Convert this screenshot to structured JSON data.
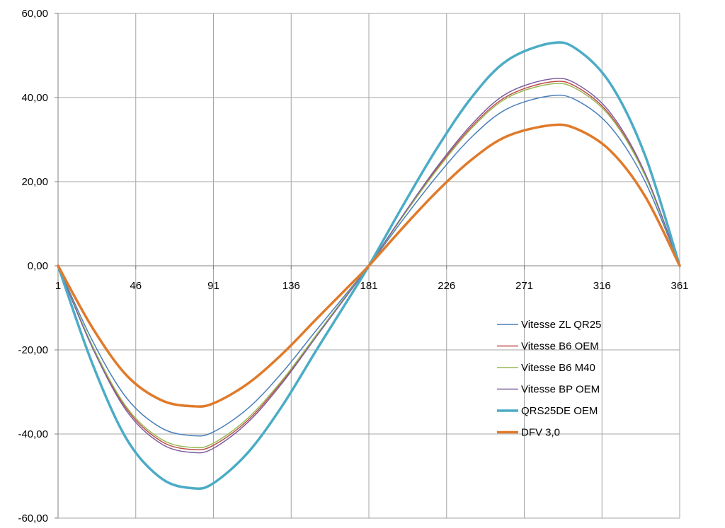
{
  "chart_data": {
    "type": "line",
    "title": "",
    "xlabel": "",
    "ylabel": "",
    "ylim": [
      -60,
      60
    ],
    "y_ticks": [
      60,
      40,
      20,
      0,
      -20,
      -40,
      -60
    ],
    "y_tick_labels": [
      "60,00",
      "40,00",
      "20,00",
      "0,00",
      "-20,00",
      "-40,00",
      "-60,00"
    ],
    "x_range": [
      1,
      361
    ],
    "x_ticks": [
      1,
      46,
      91,
      136,
      181,
      226,
      271,
      316,
      361
    ],
    "x_tick_labels": [
      "1",
      "46",
      "91",
      "136",
      "181",
      "226",
      "271",
      "316",
      "361"
    ],
    "grid": true,
    "legend_position": "right",
    "x": [
      1,
      21,
      41,
      61,
      79,
      91,
      111,
      131,
      151,
      171,
      181,
      201,
      221,
      241,
      261,
      286,
      301,
      321,
      341,
      361
    ],
    "series": [
      {
        "name": "Vitesse ZL QR25",
        "color": "#4a7ebb",
        "width": 1.5,
        "values": [
          0,
          -17.9,
          -31.6,
          -38.6,
          -40.4,
          -39.5,
          -33.9,
          -25.3,
          -15.1,
          -5.1,
          0,
          11.1,
          21.6,
          30.8,
          37.3,
          40.4,
          39.4,
          33.0,
          20.0,
          0
        ]
      },
      {
        "name": "Vitesse B6 OEM",
        "color": "#be4b48",
        "width": 1.5,
        "values": [
          0,
          -19.3,
          -34.2,
          -41.8,
          -43.7,
          -42.7,
          -36.7,
          -27.4,
          -16.4,
          -5.5,
          0,
          12.0,
          23.4,
          33.3,
          40.3,
          43.7,
          42.6,
          35.7,
          21.6,
          0
        ]
      },
      {
        "name": "Vitesse B6 M40",
        "color": "#98b954",
        "width": 1.5,
        "values": [
          0,
          -19.1,
          -33.8,
          -41.3,
          -43.2,
          -42.2,
          -36.2,
          -27.1,
          -16.2,
          -5.4,
          0,
          11.9,
          23.1,
          32.9,
          39.9,
          43.2,
          42.1,
          35.3,
          21.4,
          0
        ]
      },
      {
        "name": "Vitesse BP OEM",
        "color": "#7d60a0",
        "width": 1.5,
        "values": [
          0,
          -19.6,
          -34.7,
          -42.4,
          -44.4,
          -43.4,
          -37.2,
          -27.8,
          -16.6,
          -5.6,
          0,
          12.2,
          23.8,
          33.8,
          41.0,
          44.4,
          43.3,
          36.3,
          22.0,
          0
        ]
      },
      {
        "name": "QRS25DE OEM",
        "color": "#4bacc6",
        "width": 3.5,
        "values": [
          0,
          -23.4,
          -41.4,
          -50.6,
          -52.9,
          -51.7,
          -44.4,
          -33.2,
          -19.8,
          -6.7,
          0,
          14.5,
          28.3,
          40.3,
          48.8,
          52.9,
          51.6,
          43.2,
          26.2,
          0
        ]
      },
      {
        "name": "DFV 3,0",
        "color": "#e07a2a",
        "width": 3.5,
        "values": [
          0,
          -14.8,
          -26.2,
          -32.0,
          -33.4,
          -32.7,
          -28.0,
          -20.9,
          -12.5,
          -4.2,
          0,
          9.2,
          17.9,
          25.4,
          30.8,
          33.4,
          32.6,
          27.3,
          16.5,
          0
        ]
      }
    ]
  }
}
